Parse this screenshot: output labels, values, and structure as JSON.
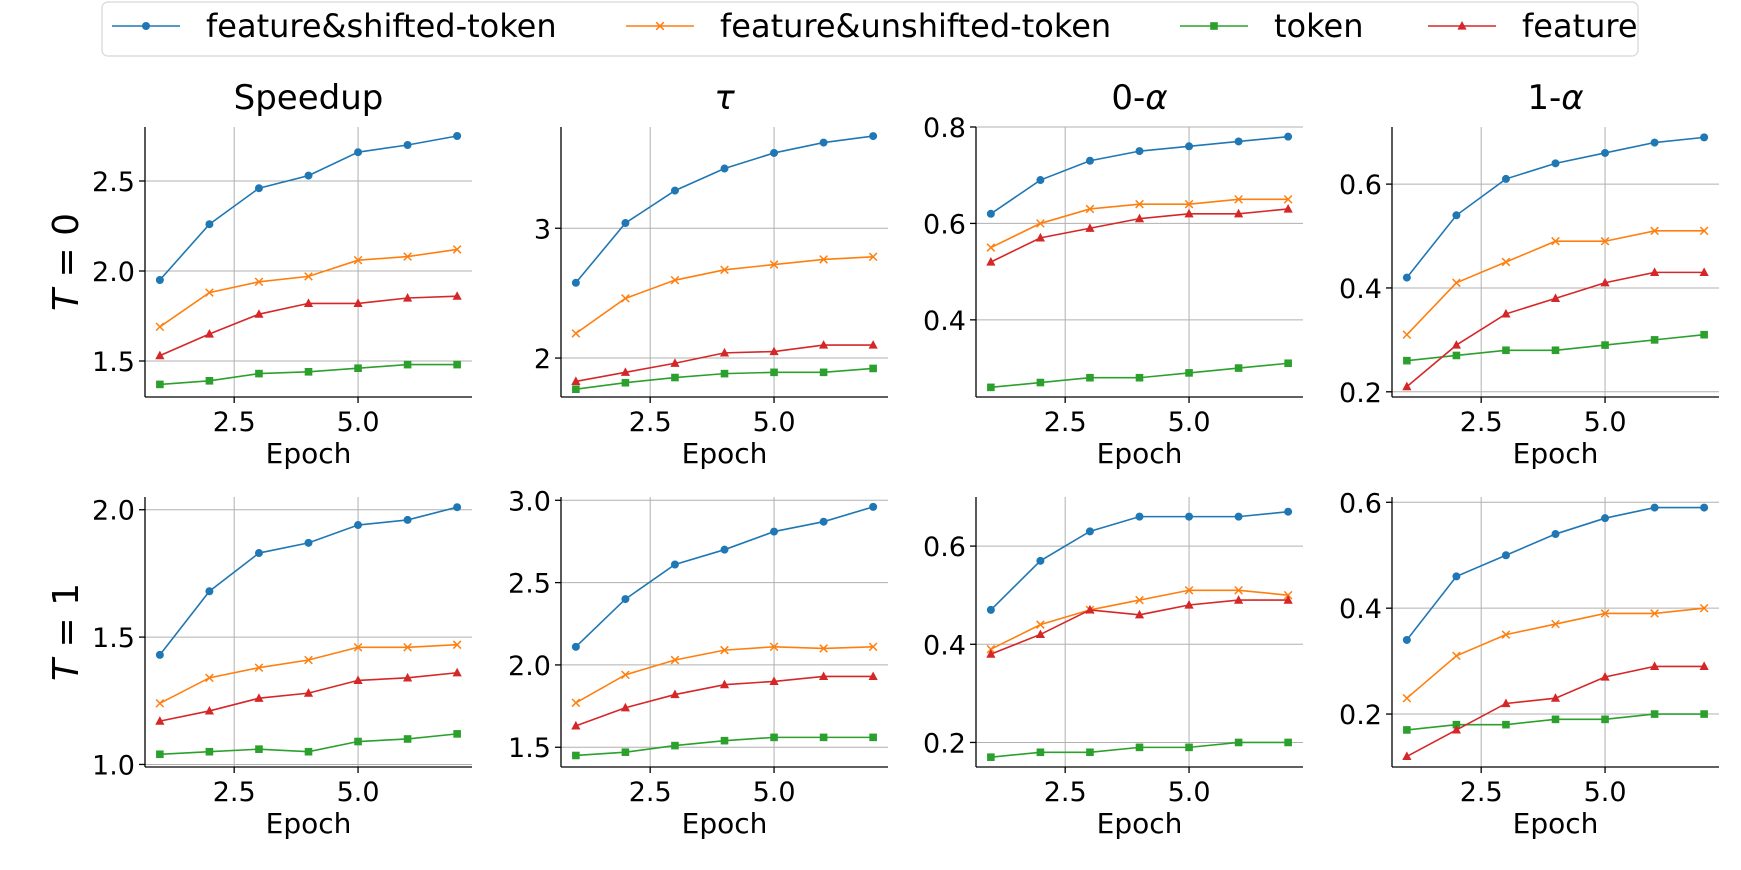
{
  "legend": [
    {
      "label": "feature&shifted-token",
      "series": 0
    },
    {
      "label": "feature&unshifted-token",
      "series": 1
    },
    {
      "label": "token",
      "series": 2
    },
    {
      "label": "feature",
      "series": 3
    }
  ],
  "series_styles": [
    {
      "color": "#1f77b4",
      "marker": "circle"
    },
    {
      "color": "#ff7f0e",
      "marker": "x"
    },
    {
      "color": "#2ca02c",
      "marker": "square"
    },
    {
      "color": "#d62728",
      "marker": "triangle"
    }
  ],
  "column_titles": [
    {
      "text": "Speedup",
      "italic": false
    },
    {
      "text": "τ",
      "italic": true
    },
    {
      "text": "0-",
      "suffix": "α"
    },
    {
      "text": "1-",
      "suffix": "α"
    }
  ],
  "row_labels": [
    {
      "var": "T",
      "rest": " = 0"
    },
    {
      "var": "T",
      "rest": " = 1"
    }
  ],
  "chart_data": [
    {
      "type": "line",
      "row": 0,
      "col": 0,
      "title": "Speedup",
      "xlabel": "Epoch",
      "ylabel": "",
      "x": [
        1,
        2,
        3,
        4,
        5,
        6,
        7
      ],
      "xlim": [
        0.7,
        7.3
      ],
      "ylim": [
        1.3,
        2.8
      ],
      "xticks": [
        2.5,
        5.0
      ],
      "xtick_labels": [
        "2.5",
        "5.0"
      ],
      "yticks": [
        1.5,
        2.0,
        2.5
      ],
      "ytick_labels": [
        "1.5",
        "2.0",
        "2.5"
      ],
      "grid": true,
      "series": [
        {
          "name": "feature&shifted-token",
          "values": [
            1.95,
            2.26,
            2.46,
            2.53,
            2.66,
            2.7,
            2.75
          ]
        },
        {
          "name": "feature&unshifted-token",
          "values": [
            1.69,
            1.88,
            1.94,
            1.97,
            2.06,
            2.08,
            2.12
          ]
        },
        {
          "name": "token",
          "values": [
            1.37,
            1.39,
            1.43,
            1.44,
            1.46,
            1.48,
            1.48
          ]
        },
        {
          "name": "feature",
          "values": [
            1.53,
            1.65,
            1.76,
            1.82,
            1.82,
            1.85,
            1.86
          ]
        }
      ]
    },
    {
      "type": "line",
      "row": 0,
      "col": 1,
      "title": "τ",
      "xlabel": "Epoch",
      "ylabel": "",
      "x": [
        1,
        2,
        3,
        4,
        5,
        6,
        7
      ],
      "xlim": [
        0.7,
        7.3
      ],
      "ylim": [
        1.7,
        3.78
      ],
      "xticks": [
        2.5,
        5.0
      ],
      "xtick_labels": [
        "2.5",
        "5.0"
      ],
      "yticks": [
        2,
        3
      ],
      "ytick_labels": [
        "2",
        "3"
      ],
      "grid": true,
      "series": [
        {
          "name": "feature&shifted-token",
          "values": [
            2.58,
            3.04,
            3.29,
            3.46,
            3.58,
            3.66,
            3.71
          ]
        },
        {
          "name": "feature&unshifted-token",
          "values": [
            2.19,
            2.46,
            2.6,
            2.68,
            2.72,
            2.76,
            2.78
          ]
        },
        {
          "name": "token",
          "values": [
            1.76,
            1.81,
            1.85,
            1.88,
            1.89,
            1.89,
            1.92
          ]
        },
        {
          "name": "feature",
          "values": [
            1.82,
            1.89,
            1.96,
            2.04,
            2.05,
            2.1,
            2.1
          ]
        }
      ]
    },
    {
      "type": "line",
      "row": 0,
      "col": 2,
      "title": "0-α",
      "xlabel": "Epoch",
      "ylabel": "",
      "x": [
        1,
        2,
        3,
        4,
        5,
        6,
        7
      ],
      "xlim": [
        0.7,
        7.3
      ],
      "ylim": [
        0.24,
        0.8
      ],
      "xticks": [
        2.5,
        5.0
      ],
      "xtick_labels": [
        "2.5",
        "5.0"
      ],
      "yticks": [
        0.4,
        0.6,
        0.8
      ],
      "ytick_labels": [
        "0.4",
        "0.6",
        "0.8"
      ],
      "grid": true,
      "series": [
        {
          "name": "feature&shifted-token",
          "values": [
            0.62,
            0.69,
            0.73,
            0.75,
            0.76,
            0.77,
            0.78
          ]
        },
        {
          "name": "feature&unshifted-token",
          "values": [
            0.55,
            0.6,
            0.63,
            0.64,
            0.64,
            0.65,
            0.65
          ]
        },
        {
          "name": "token",
          "values": [
            0.26,
            0.27,
            0.28,
            0.28,
            0.29,
            0.3,
            0.31
          ]
        },
        {
          "name": "feature",
          "values": [
            0.52,
            0.57,
            0.59,
            0.61,
            0.62,
            0.62,
            0.63
          ]
        }
      ]
    },
    {
      "type": "line",
      "row": 0,
      "col": 3,
      "title": "1-α",
      "xlabel": "Epoch",
      "ylabel": "",
      "x": [
        1,
        2,
        3,
        4,
        5,
        6,
        7
      ],
      "xlim": [
        0.7,
        7.3
      ],
      "ylim": [
        0.19,
        0.71
      ],
      "xticks": [
        2.5,
        5.0
      ],
      "xtick_labels": [
        "2.5",
        "5.0"
      ],
      "yticks": [
        0.2,
        0.4,
        0.6
      ],
      "ytick_labels": [
        "0.2",
        "0.4",
        "0.6"
      ],
      "grid": true,
      "series": [
        {
          "name": "feature&shifted-token",
          "values": [
            0.42,
            0.54,
            0.61,
            0.64,
            0.66,
            0.68,
            0.69
          ]
        },
        {
          "name": "feature&unshifted-token",
          "values": [
            0.31,
            0.41,
            0.45,
            0.49,
            0.49,
            0.51,
            0.51
          ]
        },
        {
          "name": "token",
          "values": [
            0.26,
            0.27,
            0.28,
            0.28,
            0.29,
            0.3,
            0.31
          ]
        },
        {
          "name": "feature",
          "values": [
            0.21,
            0.29,
            0.35,
            0.38,
            0.41,
            0.43,
            0.43
          ]
        }
      ]
    },
    {
      "type": "line",
      "row": 1,
      "col": 0,
      "title": "",
      "xlabel": "Epoch",
      "ylabel": "",
      "x": [
        1,
        2,
        3,
        4,
        5,
        6,
        7
      ],
      "xlim": [
        0.7,
        7.3
      ],
      "ylim": [
        0.99,
        2.05
      ],
      "xticks": [
        2.5,
        5.0
      ],
      "xtick_labels": [
        "2.5",
        "5.0"
      ],
      "yticks": [
        1.0,
        1.5,
        2.0
      ],
      "ytick_labels": [
        "1.0",
        "1.5",
        "2.0"
      ],
      "grid": true,
      "series": [
        {
          "name": "feature&shifted-token",
          "values": [
            1.43,
            1.68,
            1.83,
            1.87,
            1.94,
            1.96,
            2.01
          ]
        },
        {
          "name": "feature&unshifted-token",
          "values": [
            1.24,
            1.34,
            1.38,
            1.41,
            1.46,
            1.46,
            1.47
          ]
        },
        {
          "name": "token",
          "values": [
            1.04,
            1.05,
            1.06,
            1.05,
            1.09,
            1.1,
            1.12
          ]
        },
        {
          "name": "feature",
          "values": [
            1.17,
            1.21,
            1.26,
            1.28,
            1.33,
            1.34,
            1.36
          ]
        }
      ]
    },
    {
      "type": "line",
      "row": 1,
      "col": 1,
      "title": "",
      "xlabel": "Epoch",
      "ylabel": "",
      "x": [
        1,
        2,
        3,
        4,
        5,
        6,
        7
      ],
      "xlim": [
        0.7,
        7.3
      ],
      "ylim": [
        1.38,
        3.02
      ],
      "xticks": [
        2.5,
        5.0
      ],
      "xtick_labels": [
        "2.5",
        "5.0"
      ],
      "yticks": [
        1.5,
        2.0,
        2.5,
        3.0
      ],
      "ytick_labels": [
        "1.5",
        "2.0",
        "2.5",
        "3.0"
      ],
      "grid": true,
      "series": [
        {
          "name": "feature&shifted-token",
          "values": [
            2.11,
            2.4,
            2.61,
            2.7,
            2.81,
            2.87,
            2.96
          ]
        },
        {
          "name": "feature&unshifted-token",
          "values": [
            1.77,
            1.94,
            2.03,
            2.09,
            2.11,
            2.1,
            2.11
          ]
        },
        {
          "name": "token",
          "values": [
            1.45,
            1.47,
            1.51,
            1.54,
            1.56,
            1.56,
            1.56
          ]
        },
        {
          "name": "feature",
          "values": [
            1.63,
            1.74,
            1.82,
            1.88,
            1.9,
            1.93,
            1.93
          ]
        }
      ]
    },
    {
      "type": "line",
      "row": 1,
      "col": 2,
      "title": "",
      "xlabel": "Epoch",
      "ylabel": "",
      "x": [
        1,
        2,
        3,
        4,
        5,
        6,
        7
      ],
      "xlim": [
        0.7,
        7.3
      ],
      "ylim": [
        0.15,
        0.7
      ],
      "xticks": [
        2.5,
        5.0
      ],
      "xtick_labels": [
        "2.5",
        "5.0"
      ],
      "yticks": [
        0.2,
        0.4,
        0.6
      ],
      "ytick_labels": [
        "0.2",
        "0.4",
        "0.6"
      ],
      "grid": true,
      "series": [
        {
          "name": "feature&shifted-token",
          "values": [
            0.47,
            0.57,
            0.63,
            0.66,
            0.66,
            0.66,
            0.67
          ]
        },
        {
          "name": "feature&unshifted-token",
          "values": [
            0.39,
            0.44,
            0.47,
            0.49,
            0.51,
            0.51,
            0.5
          ]
        },
        {
          "name": "token",
          "values": [
            0.17,
            0.18,
            0.18,
            0.19,
            0.19,
            0.2,
            0.2
          ]
        },
        {
          "name": "feature",
          "values": [
            0.38,
            0.42,
            0.47,
            0.46,
            0.48,
            0.49,
            0.49
          ]
        }
      ]
    },
    {
      "type": "line",
      "row": 1,
      "col": 3,
      "title": "",
      "xlabel": "Epoch",
      "ylabel": "",
      "x": [
        1,
        2,
        3,
        4,
        5,
        6,
        7
      ],
      "xlim": [
        0.7,
        7.3
      ],
      "ylim": [
        0.1,
        0.61
      ],
      "xticks": [
        2.5,
        5.0
      ],
      "xtick_labels": [
        "2.5",
        "5.0"
      ],
      "yticks": [
        0.2,
        0.4,
        0.6
      ],
      "ytick_labels": [
        "0.2",
        "0.4",
        "0.6"
      ],
      "grid": true,
      "series": [
        {
          "name": "feature&shifted-token",
          "values": [
            0.34,
            0.46,
            0.5,
            0.54,
            0.57,
            0.59,
            0.59
          ]
        },
        {
          "name": "feature&unshifted-token",
          "values": [
            0.23,
            0.31,
            0.35,
            0.37,
            0.39,
            0.39,
            0.4
          ]
        },
        {
          "name": "token",
          "values": [
            0.17,
            0.18,
            0.18,
            0.19,
            0.19,
            0.2,
            0.2
          ]
        },
        {
          "name": "feature",
          "values": [
            0.12,
            0.17,
            0.22,
            0.23,
            0.27,
            0.29,
            0.29
          ]
        }
      ]
    }
  ]
}
